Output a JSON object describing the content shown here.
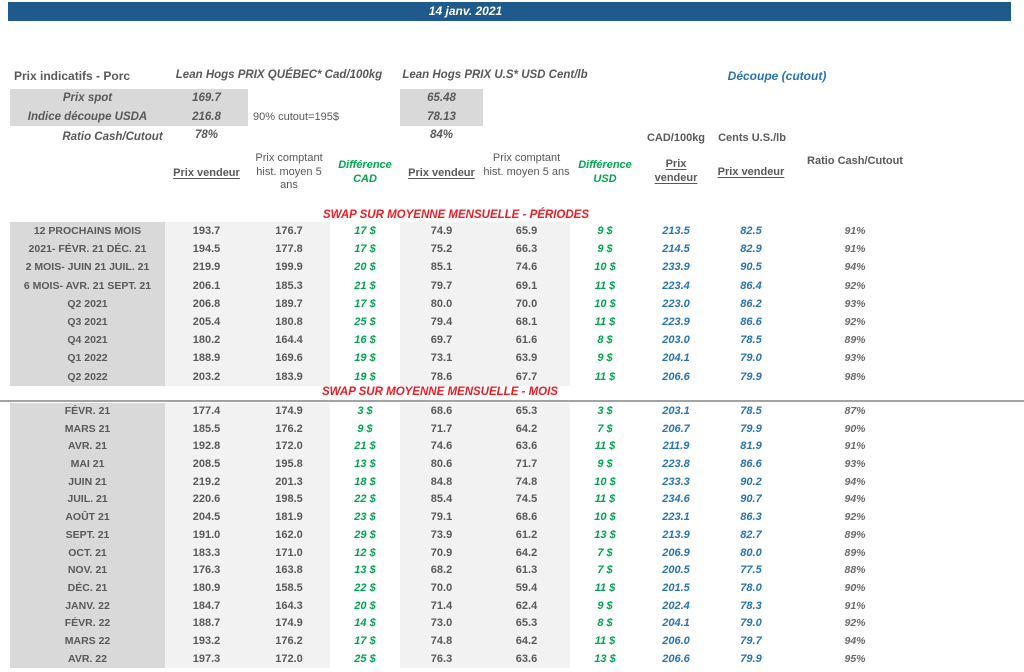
{
  "banner": {
    "date": "14 janv. 2021"
  },
  "colors": {
    "banner_blue": "#1E5A8C",
    "cutout_blue": "#2874B2",
    "diff_green": "#00A551",
    "section_red": "#EC1C24",
    "text_gray": "#595959",
    "label_bg": "#D9D9D9",
    "value_bg": "#F2F2F2"
  },
  "header": {
    "left_title": "Prix indicatifs - Porc",
    "quebec_title": "Lean Hogs PRIX QUÉBEC* Cad/100kg",
    "us_title": "Lean Hogs PRIX U.S* USD Cent/lb",
    "cutout_title": "Découpe (cutout)",
    "spot": {
      "label": "Prix spot",
      "quebec": "169.7",
      "us": "65.48"
    },
    "usda": {
      "label": "Indice découpe USDA",
      "quebec": "216.8",
      "us": "78.13"
    },
    "cutout_note": "90% cutout=195$",
    "ratio": {
      "label": "Ratio Cash/Cutout",
      "quebec": "78%",
      "us": "84%"
    }
  },
  "table_headers": {
    "prix_vendeur": "Prix vendeur",
    "prix_comptant": "Prix comptant hist. moyen 5 ans",
    "difference_cad": "Différence CAD",
    "difference_usd": "Différence USD",
    "unit_cad": "CAD/100kg",
    "unit_us": "Cents U.S./lb",
    "ratio": "Ratio Cash/Cutout"
  },
  "sections": [
    {
      "title": "SWAP SUR MOYENNE MENSUELLE - PÉRIODES",
      "rows": [
        {
          "label": "12 PROCHAINS MOIS",
          "qc_v": "193.7",
          "qc_h": "176.7",
          "d_cad": "17 $",
          "us_v": "74.9",
          "us_h": "65.9",
          "d_usd": "9 $",
          "cut_cad": "213.5",
          "cut_us": "82.5",
          "ratio": "91%"
        },
        {
          "label": "2021- FÉVR. 21 DÉC. 21",
          "qc_v": "194.5",
          "qc_h": "177.8",
          "d_cad": "17 $",
          "us_v": "75.2",
          "us_h": "66.3",
          "d_usd": "9 $",
          "cut_cad": "214.5",
          "cut_us": "82.9",
          "ratio": "91%"
        },
        {
          "label": "2 MOIS- JUIN 21 JUIL. 21",
          "qc_v": "219.9",
          "qc_h": "199.9",
          "d_cad": "20 $",
          "us_v": "85.1",
          "us_h": "74.6",
          "d_usd": "10 $",
          "cut_cad": "233.9",
          "cut_us": "90.5",
          "ratio": "94%"
        },
        {
          "label": "6 MOIS- AVR. 21 SEPT. 21",
          "qc_v": "206.1",
          "qc_h": "185.3",
          "d_cad": "21 $",
          "us_v": "79.7",
          "us_h": "69.1",
          "d_usd": "11 $",
          "cut_cad": "223.4",
          "cut_us": "86.4",
          "ratio": "92%"
        },
        {
          "label": "Q2 2021",
          "qc_v": "206.8",
          "qc_h": "189.7",
          "d_cad": "17 $",
          "us_v": "80.0",
          "us_h": "70.0",
          "d_usd": "10 $",
          "cut_cad": "223.0",
          "cut_us": "86.2",
          "ratio": "93%"
        },
        {
          "label": "Q3 2021",
          "qc_v": "205.4",
          "qc_h": "180.8",
          "d_cad": "25 $",
          "us_v": "79.4",
          "us_h": "68.1",
          "d_usd": "11 $",
          "cut_cad": "223.9",
          "cut_us": "86.6",
          "ratio": "92%"
        },
        {
          "label": "Q4 2021",
          "qc_v": "180.2",
          "qc_h": "164.4",
          "d_cad": "16 $",
          "us_v": "69.7",
          "us_h": "61.6",
          "d_usd": "8 $",
          "cut_cad": "203.0",
          "cut_us": "78.5",
          "ratio": "89%"
        },
        {
          "label": "Q1 2022",
          "qc_v": "188.9",
          "qc_h": "169.6",
          "d_cad": "19 $",
          "us_v": "73.1",
          "us_h": "63.9",
          "d_usd": "9 $",
          "cut_cad": "204.1",
          "cut_us": "79.0",
          "ratio": "93%"
        },
        {
          "label": "Q2 2022",
          "qc_v": "203.2",
          "qc_h": "183.9",
          "d_cad": "19 $",
          "us_v": "78.6",
          "us_h": "67.7",
          "d_usd": "11 $",
          "cut_cad": "206.6",
          "cut_us": "79.9",
          "ratio": "98%"
        }
      ]
    },
    {
      "title": "SWAP SUR MOYENNE MENSUELLE - MOIS",
      "rows": [
        {
          "label": "FÉVR. 21",
          "qc_v": "177.4",
          "qc_h": "174.9",
          "d_cad": "3 $",
          "us_v": "68.6",
          "us_h": "65.3",
          "d_usd": "3 $",
          "cut_cad": "203.1",
          "cut_us": "78.5",
          "ratio": "87%"
        },
        {
          "label": "MARS 21",
          "qc_v": "185.5",
          "qc_h": "176.2",
          "d_cad": "9 $",
          "us_v": "71.7",
          "us_h": "64.2",
          "d_usd": "7 $",
          "cut_cad": "206.7",
          "cut_us": "79.9",
          "ratio": "90%"
        },
        {
          "label": "AVR. 21",
          "qc_v": "192.8",
          "qc_h": "172.0",
          "d_cad": "21 $",
          "us_v": "74.6",
          "us_h": "63.6",
          "d_usd": "11 $",
          "cut_cad": "211.9",
          "cut_us": "81.9",
          "ratio": "91%"
        },
        {
          "label": "MAI 21",
          "qc_v": "208.5",
          "qc_h": "195.8",
          "d_cad": "13 $",
          "us_v": "80.6",
          "us_h": "71.7",
          "d_usd": "9 $",
          "cut_cad": "223.8",
          "cut_us": "86.6",
          "ratio": "93%"
        },
        {
          "label": "JUIN 21",
          "qc_v": "219.2",
          "qc_h": "201.3",
          "d_cad": "18 $",
          "us_v": "84.8",
          "us_h": "74.8",
          "d_usd": "10 $",
          "cut_cad": "233.3",
          "cut_us": "90.2",
          "ratio": "94%"
        },
        {
          "label": "JUIL. 21",
          "qc_v": "220.6",
          "qc_h": "198.5",
          "d_cad": "22 $",
          "us_v": "85.4",
          "us_h": "74.5",
          "d_usd": "11 $",
          "cut_cad": "234.6",
          "cut_us": "90.7",
          "ratio": "94%"
        },
        {
          "label": "AOÛT 21",
          "qc_v": "204.5",
          "qc_h": "181.9",
          "d_cad": "23 $",
          "us_v": "79.1",
          "us_h": "68.6",
          "d_usd": "10 $",
          "cut_cad": "223.1",
          "cut_us": "86.3",
          "ratio": "92%"
        },
        {
          "label": "SEPT. 21",
          "qc_v": "191.0",
          "qc_h": "162.0",
          "d_cad": "29 $",
          "us_v": "73.9",
          "us_h": "61.2",
          "d_usd": "13 $",
          "cut_cad": "213.9",
          "cut_us": "82.7",
          "ratio": "89%"
        },
        {
          "label": "OCT. 21",
          "qc_v": "183.3",
          "qc_h": "171.0",
          "d_cad": "12 $",
          "us_v": "70.9",
          "us_h": "64.2",
          "d_usd": "7 $",
          "cut_cad": "206.9",
          "cut_us": "80.0",
          "ratio": "89%"
        },
        {
          "label": "NOV. 21",
          "qc_v": "176.3",
          "qc_h": "163.8",
          "d_cad": "13 $",
          "us_v": "68.2",
          "us_h": "61.3",
          "d_usd": "7 $",
          "cut_cad": "200.5",
          "cut_us": "77.5",
          "ratio": "88%"
        },
        {
          "label": "DÉC. 21",
          "qc_v": "180.9",
          "qc_h": "158.5",
          "d_cad": "22 $",
          "us_v": "70.0",
          "us_h": "59.4",
          "d_usd": "11 $",
          "cut_cad": "201.5",
          "cut_us": "78.0",
          "ratio": "90%"
        },
        {
          "label": "JANV. 22",
          "qc_v": "184.7",
          "qc_h": "164.3",
          "d_cad": "20 $",
          "us_v": "71.4",
          "us_h": "62.4",
          "d_usd": "9 $",
          "cut_cad": "202.4",
          "cut_us": "78.3",
          "ratio": "91%"
        },
        {
          "label": "FÉVR. 22",
          "qc_v": "188.7",
          "qc_h": "174.9",
          "d_cad": "14 $",
          "us_v": "73.0",
          "us_h": "65.3",
          "d_usd": "8 $",
          "cut_cad": "204.1",
          "cut_us": "79.0",
          "ratio": "92%"
        },
        {
          "label": "MARS 22",
          "qc_v": "193.2",
          "qc_h": "176.2",
          "d_cad": "17 $",
          "us_v": "74.8",
          "us_h": "64.2",
          "d_usd": "11 $",
          "cut_cad": "206.0",
          "cut_us": "79.7",
          "ratio": "94%"
        },
        {
          "label": "AVR. 22",
          "qc_v": "197.3",
          "qc_h": "172.0",
          "d_cad": "25 $",
          "us_v": "76.3",
          "us_h": "63.6",
          "d_usd": "13 $",
          "cut_cad": "206.6",
          "cut_us": "79.9",
          "ratio": "95%"
        }
      ]
    }
  ]
}
